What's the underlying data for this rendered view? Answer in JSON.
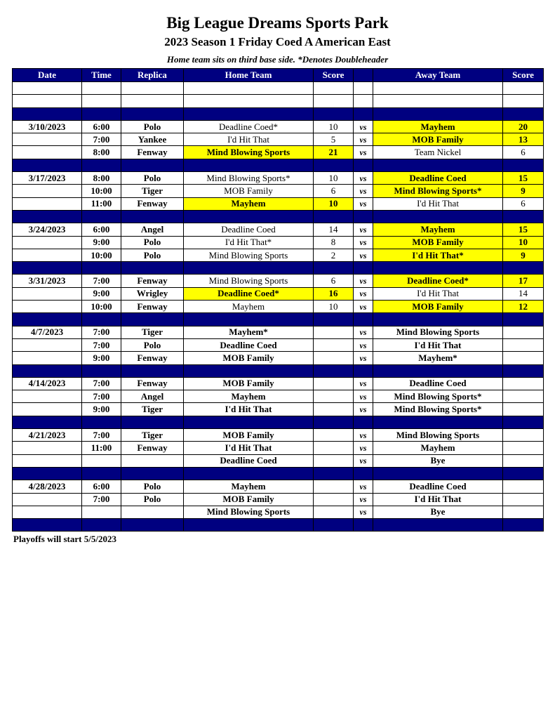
{
  "title": "Big League Dreams Sports Park",
  "subtitle": "2023 Season 1 Friday Coed A American East",
  "note": "Home team sits on third base side.  *Denotes Doubleheader",
  "headers": [
    "Date",
    "Time",
    "Replica",
    "Home Team",
    "Score",
    "",
    "Away Team",
    "Score"
  ],
  "vs_label": "vs",
  "colors": {
    "header": "#000080",
    "winner_highlight": "#ffff00"
  },
  "weeks": [
    {
      "date": "3/10/2023",
      "games": [
        {
          "time": "6:00",
          "replica": "Polo",
          "home": "Deadline Coed*",
          "home_score": "10",
          "away": "Mayhem",
          "away_score": "20",
          "winner": "away"
        },
        {
          "time": "7:00",
          "replica": "Yankee",
          "home": "I'd Hit That",
          "home_score": "5",
          "away": "MOB Family",
          "away_score": "13",
          "winner": "away"
        },
        {
          "time": "8:00",
          "replica": "Fenway",
          "home": "Mind Blowing Sports",
          "home_score": "21",
          "away": "Team Nickel",
          "away_score": "6",
          "winner": "home"
        }
      ]
    },
    {
      "date": "3/17/2023",
      "games": [
        {
          "time": "8:00",
          "replica": "Polo",
          "home": "Mind Blowing Sports*",
          "home_score": "10",
          "away": "Deadline Coed",
          "away_score": "15",
          "winner": "away"
        },
        {
          "time": "10:00",
          "replica": "Tiger",
          "home": "MOB Family",
          "home_score": "6",
          "away": "Mind Blowing Sports*",
          "away_score": "9",
          "winner": "away"
        },
        {
          "time": "11:00",
          "replica": "Fenway",
          "home": "Mayhem",
          "home_score": "10",
          "away": "I'd Hit That",
          "away_score": "6",
          "winner": "home"
        }
      ]
    },
    {
      "date": "3/24/2023",
      "games": [
        {
          "time": "6:00",
          "replica": "Angel",
          "home": "Deadline Coed",
          "home_score": "14",
          "away": "Mayhem",
          "away_score": "15",
          "winner": "away"
        },
        {
          "time": "9:00",
          "replica": "Polo",
          "home": "I'd Hit That*",
          "home_score": "8",
          "away": "MOB Family",
          "away_score": "10",
          "winner": "away"
        },
        {
          "time": "10:00",
          "replica": "Polo",
          "home": "Mind Blowing Sports",
          "home_score": "2",
          "away": "I'd Hit That*",
          "away_score": "9",
          "winner": "away"
        }
      ]
    },
    {
      "date": "3/31/2023",
      "games": [
        {
          "time": "7:00",
          "replica": "Fenway",
          "home": "Mind Blowing Sports",
          "home_score": "6",
          "away": "Deadline Coed*",
          "away_score": "17",
          "winner": "away"
        },
        {
          "time": "9:00",
          "replica": "Wrigley",
          "home": "Deadline Coed*",
          "home_score": "16",
          "away": "I'd Hit That",
          "away_score": "14",
          "winner": "home"
        },
        {
          "time": "10:00",
          "replica": "Fenway",
          "home": "Mayhem",
          "home_score": "10",
          "away": "MOB Family",
          "away_score": "12",
          "winner": "away"
        }
      ]
    },
    {
      "date": "4/7/2023",
      "games": [
        {
          "time": "7:00",
          "replica": "Tiger",
          "home": "Mayhem*",
          "home_score": "",
          "away": "Mind Blowing Sports",
          "away_score": ""
        },
        {
          "time": "7:00",
          "replica": "Polo",
          "home": "Deadline Coed",
          "home_score": "",
          "away": "I'd Hit That",
          "away_score": ""
        },
        {
          "time": "9:00",
          "replica": "Fenway",
          "home": "MOB Family",
          "home_score": "",
          "away": "Mayhem*",
          "away_score": ""
        }
      ]
    },
    {
      "date": "4/14/2023",
      "games": [
        {
          "time": "7:00",
          "replica": "Fenway",
          "home": "MOB Family",
          "home_score": "",
          "away": "Deadline Coed",
          "away_score": ""
        },
        {
          "time": "7:00",
          "replica": "Angel",
          "home": "Mayhem",
          "home_score": "",
          "away": "Mind Blowing Sports*",
          "away_score": ""
        },
        {
          "time": "9:00",
          "replica": "Tiger",
          "home": "I'd Hit That",
          "home_score": "",
          "away": "Mind Blowing Sports*",
          "away_score": ""
        }
      ]
    },
    {
      "date": "4/21/2023",
      "games": [
        {
          "time": "7:00",
          "replica": "Tiger",
          "home": "MOB Family",
          "home_score": "",
          "away": "Mind Blowing Sports",
          "away_score": ""
        },
        {
          "time": "11:00",
          "replica": "Fenway",
          "home": "I'd Hit That",
          "home_score": "",
          "away": "Mayhem",
          "away_score": ""
        },
        {
          "time": "",
          "replica": "",
          "home": "Deadline Coed",
          "home_score": "",
          "away": "Bye",
          "away_score": ""
        }
      ]
    },
    {
      "date": "4/28/2023",
      "games": [
        {
          "time": "6:00",
          "replica": "Polo",
          "home": "Mayhem",
          "home_score": "",
          "away": "Deadline Coed",
          "away_score": ""
        },
        {
          "time": "7:00",
          "replica": "Polo",
          "home": "MOB Family",
          "home_score": "",
          "away": "I'd Hit That",
          "away_score": ""
        },
        {
          "time": "",
          "replica": "",
          "home": "Mind Blowing Sports",
          "home_score": "",
          "away": "Bye",
          "away_score": ""
        }
      ]
    }
  ],
  "footer": "Playoffs will start 5/5/2023"
}
